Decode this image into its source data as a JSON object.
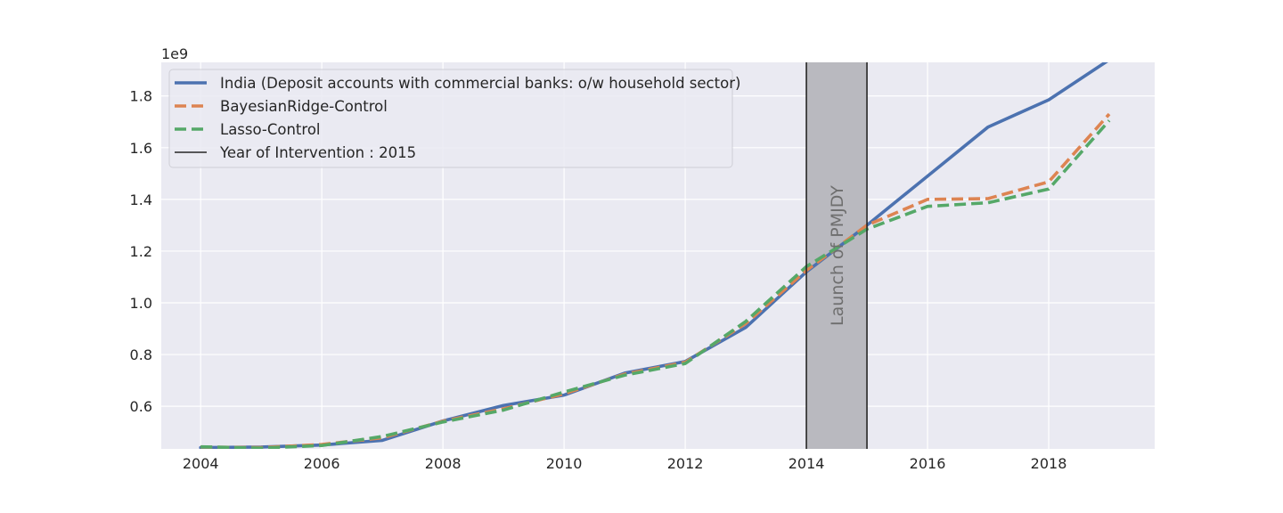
{
  "chart_data": {
    "type": "line",
    "title": "",
    "xlabel": "",
    "ylabel": "",
    "y_multiplier_label": "1e9",
    "y_scale": 1000000000,
    "xlim": [
      2003.35,
      2019.75
    ],
    "ylim": [
      435000000,
      1930000000
    ],
    "x_ticks": [
      2004,
      2006,
      2008,
      2010,
      2012,
      2014,
      2016,
      2018
    ],
    "y_ticks": [
      0.6,
      0.8,
      1.0,
      1.2,
      1.4,
      1.6,
      1.8
    ],
    "y_tick_labels": [
      "0.6",
      "0.8",
      "1.0",
      "1.2",
      "1.4",
      "1.6",
      "1.8"
    ],
    "x_tick_labels": [
      "2004",
      "2006",
      "2008",
      "2010",
      "2012",
      "2014",
      "2016",
      "2018"
    ],
    "grid": true,
    "background": "#eaeaf2",
    "legend_placement": "top-left",
    "x": [
      2004,
      2005,
      2006,
      2007,
      2008,
      2009,
      2010,
      2011,
      2012,
      2013,
      2014,
      2015,
      2016,
      2017,
      2018,
      2019
    ],
    "series": [
      {
        "name": "India (Deposit accounts with commercial banks: o/w household sector)",
        "style": "solid",
        "color": "#4c72b0",
        "values": [
          440000000,
          442000000,
          450000000,
          468000000,
          543000000,
          603000000,
          643000000,
          728000000,
          773000000,
          905000000,
          1120000000,
          1300000000,
          1490000000,
          1680000000,
          1785000000,
          1940000000
        ]
      },
      {
        "name": "BayesianRidge-Control",
        "style": "dashed",
        "color": "#dd8452",
        "values": [
          442000000,
          440000000,
          452000000,
          478000000,
          542000000,
          590000000,
          648000000,
          724000000,
          770000000,
          920000000,
          1125000000,
          1300000000,
          1400000000,
          1403000000,
          1468000000,
          1730000000
        ]
      },
      {
        "name": "Lasso-Control",
        "style": "dashed",
        "color": "#55a868",
        "values": [
          443000000,
          438000000,
          448000000,
          483000000,
          539000000,
          585000000,
          655000000,
          720000000,
          765000000,
          928000000,
          1140000000,
          1285000000,
          1373000000,
          1387000000,
          1440000000,
          1705000000
        ]
      }
    ],
    "intervention": {
      "legend_label": "Year of Intervention : 2015",
      "color": "#262626",
      "shaded_start": 2014,
      "shaded_end": 2015,
      "shade_color": "#b9b9bf",
      "annotation": "Launch of PMJDY"
    }
  }
}
